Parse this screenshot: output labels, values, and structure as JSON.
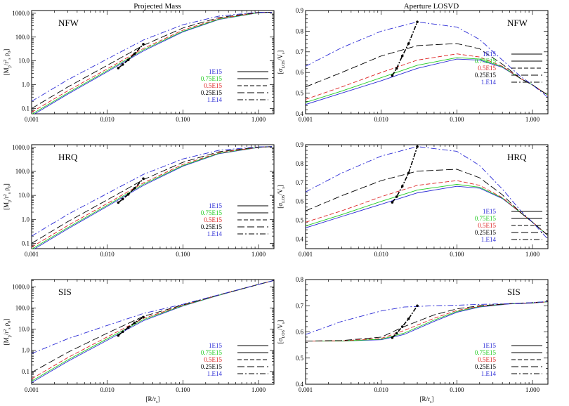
{
  "column_titles": [
    "Projected Mass",
    "Aperture LOSVD"
  ],
  "colors": {
    "1E15": "#2b2bd6",
    "0.75E15": "#22cc22",
    "0.5E15": "#dd2222",
    "0.25E15": "#000000",
    "1.E14": "#2b2bd6"
  },
  "chart_data": [
    {
      "type": "line",
      "panel_label": "NFW",
      "xlabel": "",
      "ylabel": "[M_p/r_s^2 ρ_0]",
      "xscale": "log",
      "yscale": "log",
      "xlim": [
        0.001,
        1.6
      ],
      "ylim": [
        0.06,
        1300
      ],
      "xticks": [
        0.001,
        0.01,
        0.1,
        1.0
      ],
      "xtick_labels": [
        "0.001",
        "0.010",
        "0.100",
        "1.000"
      ],
      "yticks": [
        0.1,
        1,
        10,
        100,
        1000
      ],
      "ytick_labels": [
        "0.1",
        "1.0",
        "10.0",
        "100.0",
        "1000.0"
      ],
      "legend_position": "right",
      "legend": [
        "1E15",
        "0.75E15",
        "0.5E15",
        "0.25E15",
        "1.E14"
      ],
      "x": [
        0.001,
        0.003,
        0.01,
        0.03,
        0.1,
        0.3,
        1.0,
        1.5
      ],
      "series": [
        {
          "name": "1E15",
          "color": "#2b2bd6",
          "dash": "solid",
          "values": [
            0.05,
            0.4,
            3.5,
            26,
            165,
            550,
            1050,
            1100
          ]
        },
        {
          "name": "0.75E15",
          "color": "#22cc22",
          "dash": "solid",
          "values": [
            0.057,
            0.45,
            3.9,
            29,
            175,
            570,
            1055,
            1100
          ]
        },
        {
          "name": "0.5E15",
          "color": "#dd2222",
          "dash": "dash",
          "values": [
            0.07,
            0.55,
            4.6,
            33,
            195,
            600,
            1065,
            1100
          ]
        },
        {
          "name": "0.25E15",
          "color": "#000000",
          "dash": "longdash",
          "values": [
            0.1,
            0.8,
            6.5,
            45,
            240,
            660,
            1080,
            1100
          ]
        },
        {
          "name": "1.E14",
          "color": "#2b2bd6",
          "dash": "dashdot",
          "values": [
            0.2,
            1.6,
            12,
            75,
            330,
            760,
            1100,
            1100
          ]
        }
      ],
      "marker_track": {
        "x": [
          0.014,
          0.016,
          0.019,
          0.023,
          0.03
        ],
        "values": [
          5.0,
          7.0,
          11,
          20,
          50
        ]
      }
    },
    {
      "type": "line",
      "panel_label": "NFW",
      "xlabel": "",
      "ylabel": "[σ_LOS/V_s]",
      "xscale": "log",
      "yscale": "linear",
      "xlim": [
        0.001,
        1.6
      ],
      "ylim": [
        0.4,
        0.9
      ],
      "xticks": [
        0.001,
        0.01,
        0.1,
        1.0
      ],
      "xtick_labels": [
        "0.001",
        "0.010",
        "0.100",
        "1.000"
      ],
      "yticks": [
        0.4,
        0.5,
        0.6,
        0.7,
        0.8,
        0.9
      ],
      "ytick_labels": [
        "0.4",
        "0.5",
        "0.6",
        "0.7",
        "0.8",
        "0.9"
      ],
      "legend_position": "right",
      "legend": [
        "1E15",
        "0.75E15",
        "0.5E15",
        "0.25E15",
        "1.E14"
      ],
      "x": [
        0.001,
        0.003,
        0.01,
        0.03,
        0.1,
        0.2,
        0.4,
        0.7,
        1.0,
        1.6
      ],
      "series": [
        {
          "name": "1E15",
          "color": "#2b2bd6",
          "dash": "solid",
          "values": [
            0.445,
            0.5,
            0.56,
            0.62,
            0.665,
            0.66,
            0.625,
            0.57,
            0.54,
            0.49
          ]
        },
        {
          "name": "0.75E15",
          "color": "#22cc22",
          "dash": "solid",
          "values": [
            0.455,
            0.51,
            0.575,
            0.635,
            0.672,
            0.665,
            0.628,
            0.57,
            0.54,
            0.49
          ]
        },
        {
          "name": "0.5E15",
          "color": "#dd2222",
          "dash": "dash",
          "values": [
            0.47,
            0.53,
            0.6,
            0.66,
            0.69,
            0.675,
            0.63,
            0.57,
            0.54,
            0.49
          ]
        },
        {
          "name": "0.25E15",
          "color": "#000000",
          "dash": "longdash",
          "values": [
            0.53,
            0.6,
            0.68,
            0.73,
            0.74,
            0.715,
            0.64,
            0.57,
            0.54,
            0.49
          ]
        },
        {
          "name": "1.E14",
          "color": "#2b2bd6",
          "dash": "dashdot",
          "values": [
            0.63,
            0.72,
            0.8,
            0.845,
            0.82,
            0.76,
            0.66,
            0.58,
            0.54,
            0.48
          ]
        }
      ],
      "marker_track": {
        "x": [
          0.014,
          0.016,
          0.019,
          0.023,
          0.03
        ],
        "values": [
          0.585,
          0.62,
          0.68,
          0.74,
          0.845
        ]
      }
    },
    {
      "type": "line",
      "panel_label": "HRQ",
      "xlabel": "",
      "ylabel": "[M_p/r_s^2 ρ_0]",
      "xscale": "log",
      "yscale": "log",
      "xlim": [
        0.001,
        1.6
      ],
      "ylim": [
        0.06,
        1300
      ],
      "xticks": [
        0.001,
        0.01,
        0.1,
        1.0
      ],
      "xtick_labels": [
        "0.001",
        "0.010",
        "0.100",
        "1.000"
      ],
      "yticks": [
        0.1,
        1,
        10,
        100,
        1000
      ],
      "ytick_labels": [
        "0.1",
        "1.0",
        "10.0",
        "100.0",
        "1000.0"
      ],
      "legend_position": "right",
      "legend": [
        "1E15",
        "0.75E15",
        "0.5E15",
        "0.25E15",
        "1.E14"
      ],
      "x": [
        0.001,
        0.003,
        0.01,
        0.03,
        0.1,
        0.3,
        1.0,
        1.5
      ],
      "series": [
        {
          "name": "1E15",
          "color": "#2b2bd6",
          "dash": "solid",
          "values": [
            0.05,
            0.4,
            3.5,
            26,
            165,
            550,
            1000,
            1080
          ]
        },
        {
          "name": "0.75E15",
          "color": "#22cc22",
          "dash": "solid",
          "values": [
            0.057,
            0.45,
            3.9,
            29,
            175,
            570,
            1010,
            1080
          ]
        },
        {
          "name": "0.5E15",
          "color": "#dd2222",
          "dash": "dash",
          "values": [
            0.07,
            0.55,
            4.6,
            33,
            195,
            600,
            1020,
            1080
          ]
        },
        {
          "name": "0.25E15",
          "color": "#000000",
          "dash": "longdash",
          "values": [
            0.1,
            0.8,
            6.5,
            45,
            240,
            660,
            1040,
            1080
          ]
        },
        {
          "name": "1.E14",
          "color": "#2b2bd6",
          "dash": "dashdot",
          "values": [
            0.2,
            1.6,
            12,
            75,
            330,
            760,
            1060,
            1080
          ]
        }
      ],
      "marker_track": {
        "x": [
          0.014,
          0.016,
          0.019,
          0.023,
          0.03
        ],
        "values": [
          5.0,
          7.0,
          11,
          20,
          50
        ]
      }
    },
    {
      "type": "line",
      "panel_label": "HRQ",
      "xlabel": "",
      "ylabel": "[σ_LOS/V_s]",
      "xscale": "log",
      "yscale": "linear",
      "xlim": [
        0.001,
        1.6
      ],
      "ylim": [
        0.35,
        0.9
      ],
      "xticks": [
        0.001,
        0.01,
        0.1,
        1.0
      ],
      "xtick_labels": [
        "0.001",
        "0.010",
        "0.100",
        "1.000"
      ],
      "yticks": [
        0.4,
        0.5,
        0.6,
        0.7,
        0.8,
        0.9
      ],
      "ytick_labels": [
        "0.4",
        "0.5",
        "0.6",
        "0.7",
        "0.8",
        "0.9"
      ],
      "legend_position": "right",
      "legend": [
        "1E15",
        "0.75E15",
        "0.5E15",
        "0.25E15",
        "1.E14"
      ],
      "x": [
        0.001,
        0.003,
        0.01,
        0.03,
        0.1,
        0.2,
        0.4,
        0.7,
        1.0,
        1.6
      ],
      "series": [
        {
          "name": "1E15",
          "color": "#2b2bd6",
          "dash": "solid",
          "values": [
            0.46,
            0.52,
            0.585,
            0.645,
            0.68,
            0.67,
            0.615,
            0.54,
            0.49,
            0.42
          ]
        },
        {
          "name": "0.75E15",
          "color": "#22cc22",
          "dash": "solid",
          "values": [
            0.47,
            0.53,
            0.6,
            0.66,
            0.69,
            0.675,
            0.618,
            0.54,
            0.49,
            0.42
          ]
        },
        {
          "name": "0.5E15",
          "color": "#dd2222",
          "dash": "dash",
          "values": [
            0.49,
            0.55,
            0.625,
            0.685,
            0.71,
            0.685,
            0.62,
            0.54,
            0.49,
            0.42
          ]
        },
        {
          "name": "0.25E15",
          "color": "#000000",
          "dash": "longdash",
          "values": [
            0.55,
            0.63,
            0.71,
            0.76,
            0.77,
            0.725,
            0.635,
            0.54,
            0.49,
            0.42
          ]
        },
        {
          "name": "1.E14",
          "color": "#2b2bd6",
          "dash": "dashdot",
          "values": [
            0.65,
            0.75,
            0.84,
            0.89,
            0.865,
            0.79,
            0.665,
            0.55,
            0.49,
            0.4
          ]
        }
      ],
      "marker_track": {
        "x": [
          0.014,
          0.016,
          0.019,
          0.023,
          0.03
        ],
        "values": [
          0.595,
          0.625,
          0.68,
          0.75,
          0.89
        ]
      }
    },
    {
      "type": "line",
      "panel_label": "SIS",
      "xlabel": "[R/r_s]",
      "ylabel": "[M_p/r_s^2 ρ_0]",
      "xscale": "log",
      "yscale": "log",
      "xlim": [
        0.001,
        1.6
      ],
      "ylim": [
        0.025,
        2200
      ],
      "xticks": [
        0.001,
        0.01,
        0.1,
        1.0
      ],
      "xtick_labels": [
        "0.001",
        "0.010",
        "0.100",
        "1.000"
      ],
      "yticks": [
        0.1,
        1,
        10,
        100,
        1000
      ],
      "ytick_labels": [
        "0.1",
        "1.0",
        "10.0",
        "100.0",
        "1000.0"
      ],
      "legend_position": "right",
      "legend": [
        "1E15",
        "0.75E15",
        "0.5E15",
        "0.25E15",
        "1.E14"
      ],
      "x": [
        0.001,
        0.003,
        0.01,
        0.03,
        0.1,
        0.3,
        1.0,
        1.6
      ],
      "series": [
        {
          "name": "1E15",
          "color": "#2b2bd6",
          "dash": "solid",
          "values": [
            0.03,
            0.3,
            3.0,
            25,
            125,
            400,
            1300,
            2000
          ]
        },
        {
          "name": "0.75E15",
          "color": "#22cc22",
          "dash": "solid",
          "values": [
            0.035,
            0.35,
            3.5,
            28,
            130,
            405,
            1300,
            2000
          ]
        },
        {
          "name": "0.5E15",
          "color": "#dd2222",
          "dash": "dash",
          "values": [
            0.045,
            0.45,
            4.3,
            32,
            135,
            410,
            1300,
            2000
          ]
        },
        {
          "name": "0.25E15",
          "color": "#000000",
          "dash": "longdash",
          "values": [
            0.09,
            0.8,
            6.5,
            40,
            140,
            415,
            1300,
            2000
          ]
        },
        {
          "name": "1.E14",
          "color": "#2b2bd6",
          "dash": "dashdot",
          "values": [
            0.7,
            3.5,
            15,
            55,
            150,
            420,
            1300,
            2000
          ]
        }
      ],
      "marker_track": {
        "x": [
          0.014,
          0.016,
          0.019,
          0.023,
          0.03
        ],
        "values": [
          5.0,
          7.5,
          12,
          20,
          37
        ]
      }
    },
    {
      "type": "line",
      "panel_label": "SIS",
      "xlabel": "[R/r_s]",
      "ylabel": "[σ_LOS/V_s]",
      "xscale": "log",
      "yscale": "linear",
      "xlim": [
        0.001,
        1.6
      ],
      "ylim": [
        0.4,
        0.8
      ],
      "xticks": [
        0.001,
        0.01,
        0.1,
        1.0
      ],
      "xtick_labels": [
        "0.001",
        "0.010",
        "0.100",
        "1.000"
      ],
      "yticks": [
        0.4,
        0.5,
        0.6,
        0.7,
        0.8
      ],
      "ytick_labels": [
        "0.4",
        "0.5",
        "0.6",
        "0.7",
        "0.8"
      ],
      "legend_position": "right",
      "legend": [
        "1E15",
        "0.75E15",
        "0.5E15",
        "0.25E15",
        "1.E14"
      ],
      "x": [
        0.001,
        0.003,
        0.01,
        0.02,
        0.05,
        0.1,
        0.2,
        0.5,
        1.0,
        1.6
      ],
      "series": [
        {
          "name": "1E15",
          "color": "#2b2bd6",
          "dash": "solid",
          "values": [
            0.565,
            0.565,
            0.57,
            0.59,
            0.64,
            0.675,
            0.695,
            0.707,
            0.71,
            0.715
          ]
        },
        {
          "name": "0.75E15",
          "color": "#22cc22",
          "dash": "solid",
          "values": [
            0.565,
            0.565,
            0.572,
            0.595,
            0.645,
            0.678,
            0.697,
            0.708,
            0.711,
            0.715
          ]
        },
        {
          "name": "0.5E15",
          "color": "#dd2222",
          "dash": "dash",
          "values": [
            0.565,
            0.566,
            0.575,
            0.605,
            0.652,
            0.682,
            0.698,
            0.708,
            0.711,
            0.715
          ]
        },
        {
          "name": "0.25E15",
          "color": "#000000",
          "dash": "longdash",
          "values": [
            0.565,
            0.567,
            0.58,
            0.62,
            0.665,
            0.688,
            0.7,
            0.708,
            0.712,
            0.716
          ]
        },
        {
          "name": "1.E14",
          "color": "#2b2bd6",
          "dash": "dashdot",
          "values": [
            0.59,
            0.64,
            0.68,
            0.695,
            0.7,
            0.702,
            0.705,
            0.708,
            0.712,
            0.716
          ]
        }
      ],
      "marker_track": {
        "x": [
          0.014,
          0.016,
          0.019,
          0.023,
          0.03
        ],
        "values": [
          0.578,
          0.595,
          0.62,
          0.65,
          0.7
        ]
      }
    }
  ]
}
